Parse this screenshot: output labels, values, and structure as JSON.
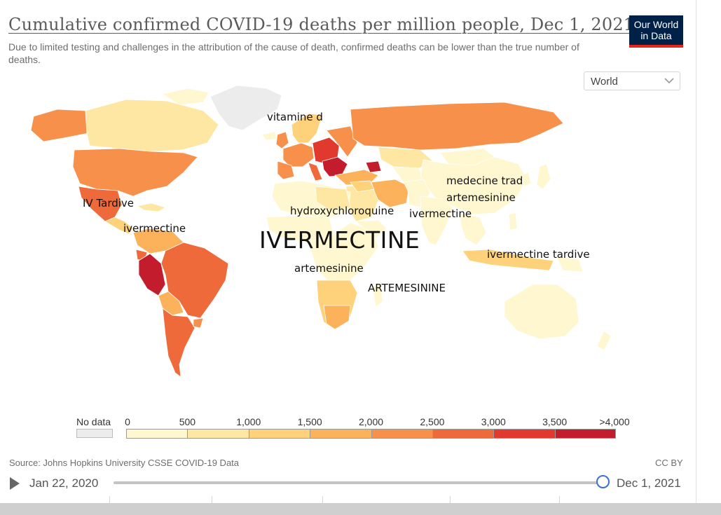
{
  "header": {
    "title": "Cumulative confirmed COVID-19 deaths per million people, Dec 1, 2021",
    "subtitle": "Due to limited testing and challenges in the attribution of the cause of death, confirmed deaths can be lower than the true number of deaths.",
    "logo_line1": "Our World",
    "logo_line2": "in Data"
  },
  "controls": {
    "region": "World",
    "region_icon": "chevron-down-icon"
  },
  "annotations": {
    "vitamine_d": "vitamine d",
    "iv_tardive": "IV Tardive",
    "ivermectine_central_america": "ivermectine",
    "hydroxychloroquine": "hydroxychloroquine",
    "ivermectine_south_asia": "ivermectine",
    "medecine_trad": "medecine trad",
    "artemesinine_china": "artemesinine",
    "ivermectine_big": "IVERMECTINE",
    "artemesinine_africa": "artemesinine",
    "artemesinine_east_africa": "ARTEMESININE",
    "ivermectine_tardive": "ivermectine tardive"
  },
  "legend": {
    "nodata_label": "No data",
    "ticks": [
      "0",
      "500",
      "1,000",
      "1,500",
      "2,000",
      "2,500",
      "3,000",
      "3,500",
      ">4,000"
    ],
    "colors": [
      "#fef7cf",
      "#fde7a3",
      "#fdd27a",
      "#fbb25a",
      "#f7904a",
      "#ef6a3b",
      "#e2392f",
      "#c21c2d"
    ],
    "nodata_color": "#ececec"
  },
  "footer": {
    "source": "Source: Johns Hopkins University CSSE COVID-19 Data",
    "license": "CC BY",
    "play_icon": "play-icon",
    "start_date": "Jan 22, 2020",
    "end_date": "Dec 1, 2021",
    "timeline_position": 1.0
  }
}
